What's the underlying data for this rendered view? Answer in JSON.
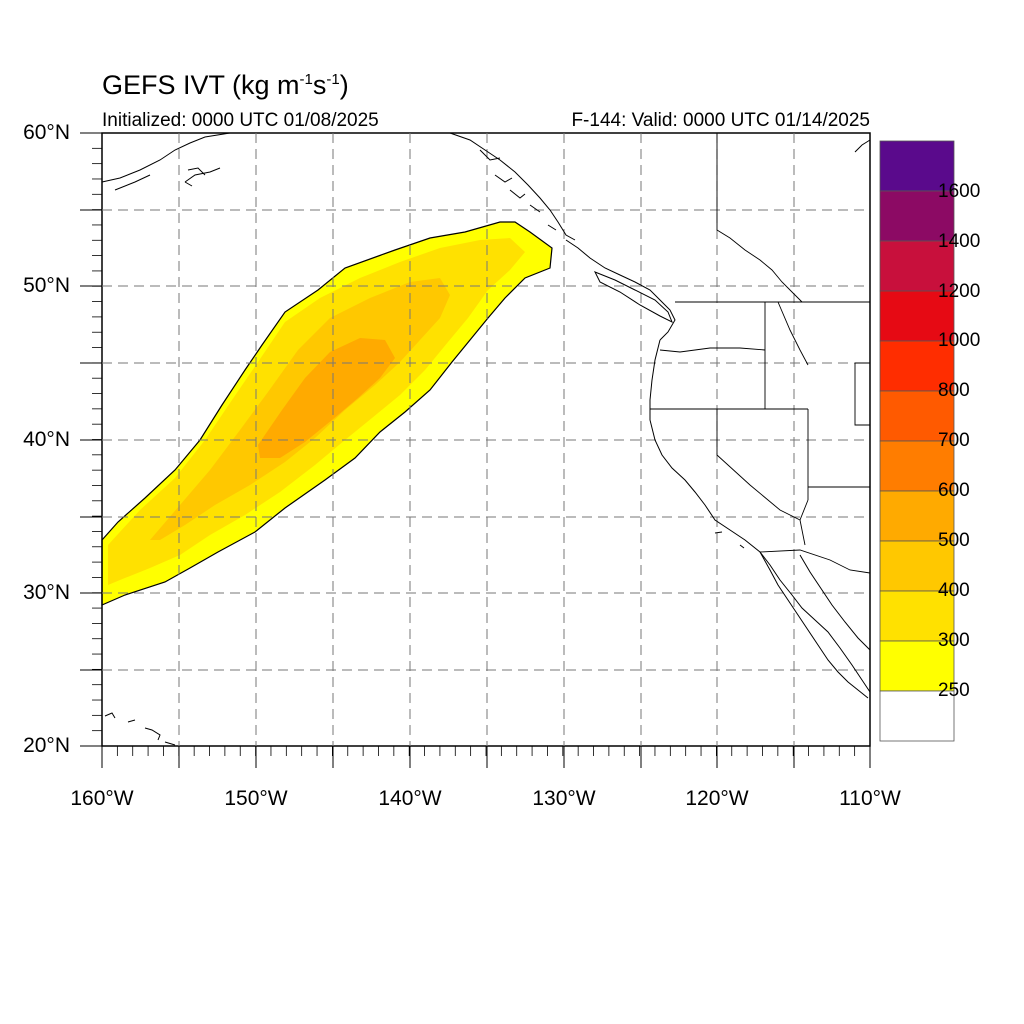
{
  "title_main": "GEFS IVT (kg m",
  "title_sup1": "-1",
  "title_mid": "s",
  "title_sup2": "-1",
  "title_end": ")",
  "subtitle_left": "Initialized: 0000 UTC 01/08/2025",
  "subtitle_right": "F-144: Valid: 0000 UTC 01/14/2025",
  "map": {
    "lon_range": [
      -160,
      -110
    ],
    "lat_range": [
      20,
      60
    ],
    "lat_labels": [
      "60°N",
      "50°N",
      "40°N",
      "30°N",
      "20°N"
    ],
    "lon_labels": [
      "160°W",
      "150°W",
      "140°W",
      "130°W",
      "120°W",
      "110°W"
    ]
  },
  "colorbar": {
    "labels": [
      "1600",
      "1400",
      "1200",
      "1000",
      "800",
      "700",
      "600",
      "500",
      "400",
      "300",
      "250"
    ],
    "colors": [
      "#5a0a8c",
      "#8c0a64",
      "#c8103c",
      "#e60a14",
      "#ff2d00",
      "#ff5a00",
      "#ff7d00",
      "#ffaa00",
      "#ffc800",
      "#ffe100",
      "#ffff00",
      "#ffffff"
    ]
  },
  "ivt_field": {
    "description_levels": [
      "250",
      "300",
      "400",
      "500"
    ],
    "level_colors": [
      "#ffff00",
      "#ffe100",
      "#ffc800",
      "#ffaa00"
    ]
  }
}
